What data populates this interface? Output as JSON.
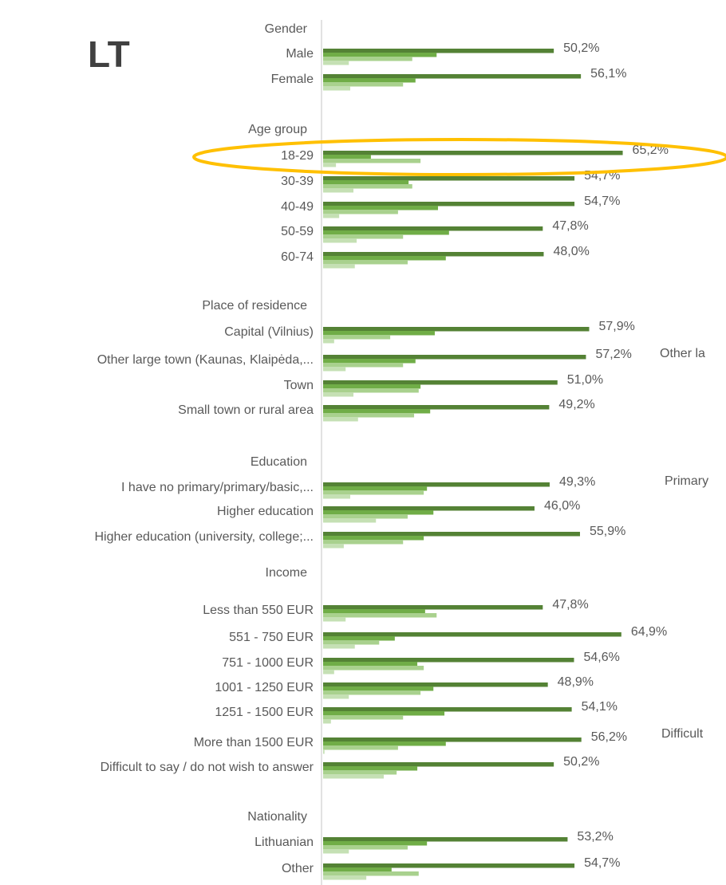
{
  "chart_data": {
    "type": "hbar",
    "title": "LT",
    "categories": [
      "Gender",
      "Male",
      "Female",
      "Age group",
      "18-29",
      "30-39",
      "40-49",
      "50-59",
      "60-74",
      "Place of residence",
      "Capital (Vilnius)",
      "Other large town (Kaunas, Klaipėda,...",
      "Town",
      "Small town or rural area",
      "Education",
      "I have no primary/primary/basic,...",
      "Higher education",
      "Higher education (university, college;...",
      "Income",
      "Less than 550 EUR",
      "551 - 750 EUR",
      "751 - 1000 EUR",
      "1001 - 1250 EUR",
      "1251 - 1500 EUR",
      "More than 1500 EUR",
      "Difficult to say / do not wish to answer",
      "Nationality",
      "Lithuanian",
      "Other"
    ],
    "series": [
      {
        "color": "#548235",
        "values": [
          null,
          50.2,
          56.1,
          null,
          65.2,
          54.7,
          54.7,
          47.8,
          48.0,
          null,
          57.9,
          57.2,
          51.0,
          49.2,
          null,
          49.3,
          46.0,
          55.9,
          null,
          47.8,
          64.9,
          54.6,
          48.9,
          54.1,
          56.2,
          50.2,
          null,
          53.2,
          54.7
        ],
        "value_labels": [
          null,
          "50,2%",
          "56,1%",
          null,
          "65,2%",
          "54,7%",
          "54,7%",
          "47,8%",
          "48,0%",
          null,
          "57,9%",
          "57,2%",
          "51,0%",
          "49,2%",
          null,
          "49,3%",
          "46,0%",
          "55,9%",
          null,
          "47,8%",
          "64,9%",
          "54,6%",
          "48,9%",
          "54,1%",
          "56,2%",
          "50,2%",
          null,
          "53,2%",
          "54,7%"
        ]
      },
      {
        "color": "#70ad47",
        "values": [
          null,
          24.7,
          20.1,
          null,
          10.4,
          18.6,
          25.0,
          27.4,
          26.7,
          null,
          24.3,
          20.1,
          21.2,
          23.3,
          null,
          22.6,
          24.0,
          21.9,
          null,
          22.2,
          15.6,
          20.5,
          24.0,
          26.4,
          26.7,
          20.5,
          null,
          22.6,
          14.9
        ]
      },
      {
        "color": "#a9d18e",
        "values": [
          null,
          19.4,
          17.4,
          null,
          21.2,
          19.4,
          16.3,
          17.4,
          18.4,
          null,
          14.6,
          17.4,
          20.8,
          19.8,
          null,
          21.9,
          18.4,
          17.4,
          null,
          24.7,
          12.2,
          21.9,
          21.2,
          17.4,
          16.3,
          16.0,
          null,
          18.4,
          20.8
        ]
      },
      {
        "color": "#c5e0b4",
        "values": [
          null,
          5.6,
          5.9,
          null,
          2.8,
          6.6,
          3.5,
          7.3,
          6.9,
          null,
          2.4,
          4.9,
          6.6,
          7.6,
          null,
          5.9,
          11.5,
          4.5,
          null,
          4.9,
          6.9,
          2.4,
          5.6,
          1.7,
          0.3,
          13.2,
          null,
          5.6,
          9.4
        ]
      }
    ],
    "annotations": [
      "Other la",
      "Primary",
      "Difficult"
    ]
  }
}
